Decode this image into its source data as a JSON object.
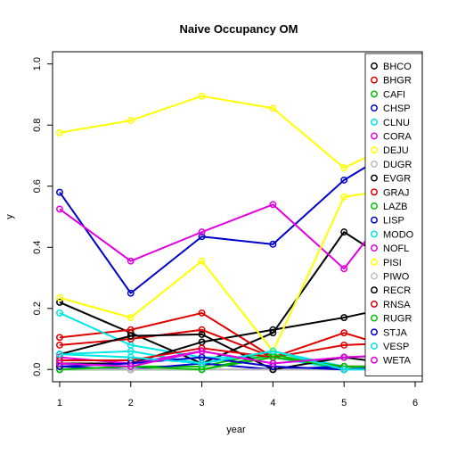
{
  "chart_data": {
    "type": "line",
    "title": "Naive Occupancy OM",
    "xlabel": "year",
    "ylabel": "y",
    "xlim": [
      0.9,
      6.1
    ],
    "ylim": [
      -0.04,
      1.04
    ],
    "x": [
      1,
      2,
      3,
      4,
      5,
      6
    ],
    "x_ticks": [
      "1",
      "2",
      "3",
      "4",
      "5",
      "6"
    ],
    "y_ticks": [
      "0.0",
      "0.2",
      "0.4",
      "0.6",
      "0.8",
      "1.0"
    ],
    "grid": false,
    "legend_position": "right",
    "series": [
      {
        "name": "BHCO",
        "color": "#000000",
        "values": [
          0.22,
          0.12,
          0.02,
          0.12,
          0.45,
          0.3
        ]
      },
      {
        "name": "BHGR",
        "color": "#df0000",
        "values": [
          0.105,
          0.13,
          0.185,
          0.04,
          0.12,
          0.05
        ]
      },
      {
        "name": "CAFI",
        "color": "#00c000",
        "values": [
          0.02,
          0.01,
          0.01,
          0.06,
          0.0,
          0.03
        ]
      },
      {
        "name": "CHSP",
        "color": "#0000cc",
        "values": [
          0.58,
          0.25,
          0.435,
          0.41,
          0.62,
          0.76
        ]
      },
      {
        "name": "CLNU",
        "color": "#00e5e5",
        "values": [
          0.185,
          0.08,
          0.04,
          0.04,
          0.0,
          0.0
        ]
      },
      {
        "name": "CORA",
        "color": "#e000e0",
        "values": [
          0.525,
          0.355,
          0.45,
          0.54,
          0.33,
          0.63
        ]
      },
      {
        "name": "DEJU",
        "color": "#ffff00",
        "values": [
          0.775,
          0.815,
          0.895,
          0.855,
          0.66,
          0.77
        ]
      },
      {
        "name": "DUGR",
        "color": "#bdbdbd",
        "values": [
          0.0,
          0.0,
          0.0,
          0.0,
          0.0,
          0.0
        ]
      },
      {
        "name": "EVGR",
        "color": "#000000",
        "values": [
          0.02,
          0.02,
          0.09,
          0.13,
          0.17,
          0.22
        ]
      },
      {
        "name": "GRAJ",
        "color": "#df0000",
        "values": [
          0.08,
          0.1,
          0.13,
          0.04,
          0.08,
          0.09
        ]
      },
      {
        "name": "LAZB",
        "color": "#00c000",
        "values": [
          0.0,
          0.0,
          0.0,
          0.05,
          0.0,
          0.02
        ]
      },
      {
        "name": "LISP",
        "color": "#0000cc",
        "values": [
          0.01,
          0.0,
          0.02,
          0.0,
          0.01,
          0.01
        ]
      },
      {
        "name": "MODO",
        "color": "#00e5e5",
        "values": [
          0.05,
          0.06,
          0.02,
          0.06,
          0.01,
          0.0
        ]
      },
      {
        "name": "NOFL",
        "color": "#e000e0",
        "values": [
          0.04,
          0.02,
          0.06,
          0.02,
          0.04,
          0.05
        ]
      },
      {
        "name": "PISI",
        "color": "#ffff00",
        "values": [
          0.235,
          0.17,
          0.355,
          0.06,
          0.565,
          0.6
        ]
      },
      {
        "name": "PIWO",
        "color": "#bdbdbd",
        "values": [
          0.0,
          0.0,
          0.0,
          0.0,
          0.0,
          0.0
        ]
      },
      {
        "name": "RECR",
        "color": "#000000",
        "values": [
          0.05,
          0.11,
          0.115,
          0.0,
          0.04,
          0.01
        ]
      },
      {
        "name": "RNSA",
        "color": "#df0000",
        "values": [
          0.03,
          0.03,
          0.07,
          0.04,
          0.01,
          0.01
        ]
      },
      {
        "name": "RUGR",
        "color": "#00c000",
        "values": [
          0.0,
          0.01,
          0.0,
          0.04,
          0.01,
          0.01
        ]
      },
      {
        "name": "STJA",
        "color": "#0000cc",
        "values": [
          0.01,
          0.02,
          0.04,
          0.01,
          0.0,
          0.01
        ]
      },
      {
        "name": "VESP",
        "color": "#00e5e5",
        "values": [
          0.05,
          0.04,
          0.02,
          0.06,
          0.0,
          0.0
        ]
      },
      {
        "name": "WETA",
        "color": "#e000e0",
        "values": [
          0.02,
          0.01,
          0.06,
          0.02,
          0.04,
          0.05
        ]
      }
    ]
  }
}
